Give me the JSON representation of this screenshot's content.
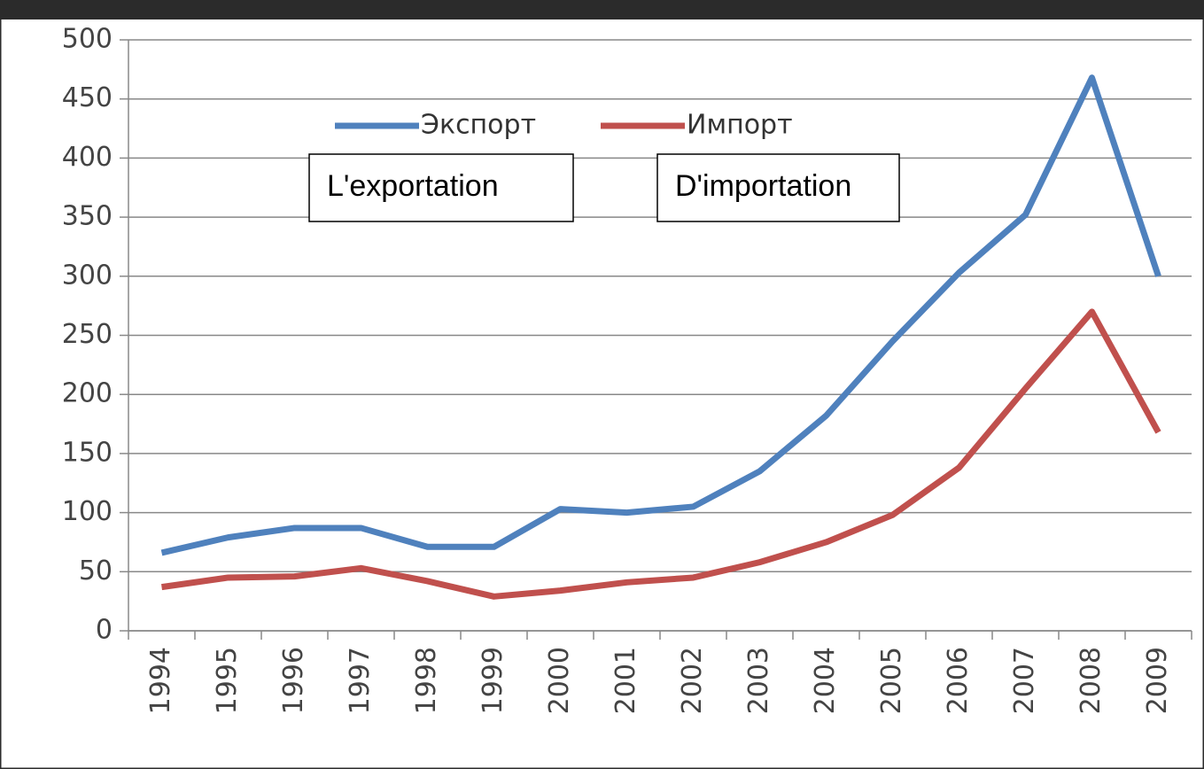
{
  "chart_data": {
    "type": "line",
    "categories": [
      "1994",
      "1995",
      "1996",
      "1997",
      "1998",
      "1999",
      "2000",
      "2001",
      "2002",
      "2003",
      "2004",
      "2005",
      "2006",
      "2007",
      "2008",
      "2009"
    ],
    "series": [
      {
        "name": "Экспорт",
        "color": "#4f81bd",
        "values": [
          66,
          79,
          87,
          87,
          71,
          71,
          103,
          100,
          105,
          135,
          182,
          245,
          303,
          352,
          468,
          300
        ]
      },
      {
        "name": "Импорт",
        "color": "#c0504d",
        "values": [
          37,
          45,
          46,
          53,
          42,
          29,
          34,
          41,
          45,
          58,
          75,
          98,
          138,
          205,
          270,
          168
        ]
      }
    ],
    "annotations": [
      "L'exportation",
      "D'importation"
    ],
    "ylim": [
      0,
      500
    ],
    "yticks": [
      0,
      50,
      100,
      150,
      200,
      250,
      300,
      350,
      400,
      450,
      500
    ],
    "grid": true,
    "legend": "top"
  }
}
